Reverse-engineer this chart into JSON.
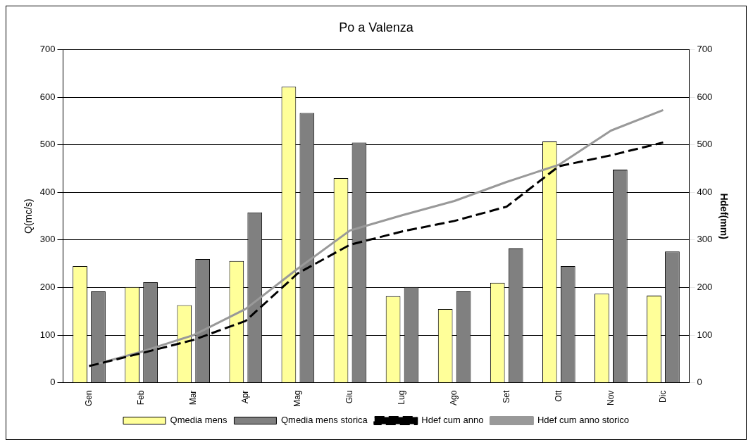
{
  "chart_data": {
    "type": "bar",
    "title": "Po a Valenza",
    "ylabel": "Q(mc/s)",
    "y2label": "Hdef(mm)",
    "categories": [
      "Gen",
      "Feb",
      "Mar",
      "Apr",
      "Mag",
      "Giu",
      "Lug",
      "Ago",
      "Set",
      "Ott",
      "Nov",
      "Dic"
    ],
    "series": [
      {
        "name": "Qmedia mens",
        "color": "#ffff99",
        "values": [
          245,
          201,
          163,
          256,
          622,
          430,
          182,
          155,
          210,
          507,
          187,
          183
        ]
      },
      {
        "name": "Qmedia mens storica",
        "color": "#808080",
        "values": [
          192,
          211,
          260,
          358,
          567,
          505,
          201,
          192,
          282,
          245,
          448,
          276
        ]
      },
      {
        "name": "Hdef cum anno",
        "type": "line",
        "axis": "y2",
        "color": "#000000",
        "line_style": "dashed",
        "values": [
          35,
          62,
          90,
          130,
          230,
          290,
          318,
          340,
          370,
          455,
          478,
          505
        ]
      },
      {
        "name": "Hdef cum anno storico",
        "type": "line",
        "axis": "y2",
        "color": "#999999",
        "line_style": "solid",
        "values": [
          35,
          65,
          100,
          155,
          240,
          320,
          352,
          382,
          422,
          458,
          530,
          573
        ]
      }
    ],
    "ylim": [
      0,
      700
    ],
    "yticks": [
      0,
      100,
      200,
      300,
      400,
      500,
      600,
      700
    ],
    "y2lim": [
      0,
      700
    ],
    "y2ticks": [
      0,
      100,
      200,
      300,
      400,
      500,
      600,
      700
    ],
    "grid": "y",
    "legend": "bottom",
    "marker": "none"
  }
}
